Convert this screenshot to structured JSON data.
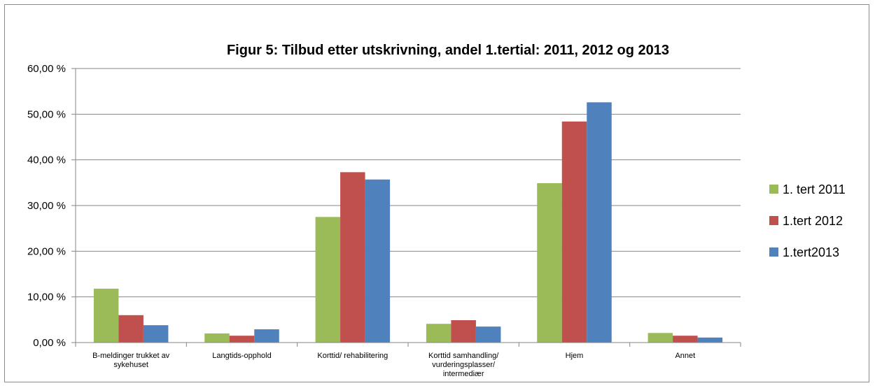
{
  "chart_data": {
    "type": "bar",
    "title": "Figur 5: Tilbud etter utskrivning, andel 1.tertial: 2011, 2012 og 2013",
    "xlabel": "",
    "ylabel": "",
    "ylim": [
      0,
      60
    ],
    "yticks": [
      "0,00 %",
      "10,00 %",
      "20,00 %",
      "30,00 %",
      "40,00 %",
      "50,00 %",
      "60,00 %"
    ],
    "grid": true,
    "legend_position": "right",
    "categories": [
      [
        "B-meldinger trukket av",
        "sykehuset"
      ],
      [
        "Langtids-opphold"
      ],
      [
        "Korttid/ rehabilitering"
      ],
      [
        "Korttid samhandling/",
        "vurderingsplasser/",
        "intermediær"
      ],
      [
        "Hjem"
      ],
      [
        "Annet"
      ]
    ],
    "series": [
      {
        "name": "1. tert 2011",
        "color": "#9bbb59",
        "values": [
          11.8,
          2.0,
          27.5,
          4.1,
          34.9,
          2.1
        ]
      },
      {
        "name": "1.tert 2012",
        "color": "#c0504d",
        "values": [
          6.0,
          1.5,
          37.3,
          4.9,
          48.4,
          1.5
        ]
      },
      {
        "name": "1.tert2013",
        "color": "#4f81bd",
        "values": [
          3.8,
          2.9,
          35.7,
          3.5,
          52.6,
          1.1
        ]
      }
    ]
  }
}
